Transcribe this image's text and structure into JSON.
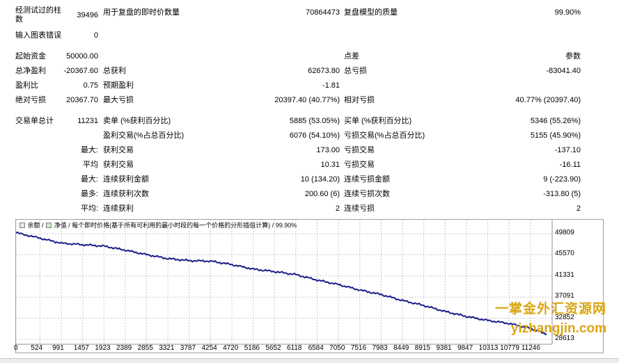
{
  "rows": [
    {
      "label": "经测试过的柱数",
      "value": "39496",
      "mid_label": "用于复盘的即时价数量",
      "mid_value": "70864473",
      "right_label": "复盘模型的质量",
      "right_value": "99.90%"
    },
    {
      "label": "输入图表错误",
      "value": "0"
    },
    {
      "label": "起始资金",
      "value": "50000.00",
      "right_label": "点差",
      "right_value": "参数"
    },
    {
      "label": "总净盈利",
      "value": "-20367.60",
      "mid_label": "总获利",
      "mid_value": "62673.80",
      "right_label": "总亏损",
      "right_value": "-83041.40"
    },
    {
      "label": "盈利比",
      "value": "0.75",
      "mid_label": "预期盈利",
      "mid_value": "-1.81"
    },
    {
      "label": "绝对亏损",
      "value": "20367.70",
      "mid_label": "最大亏损",
      "mid_value": "20397.40 (40.77%)",
      "right_label": "相对亏损",
      "right_value": "40.77% (20397.40)"
    },
    {
      "label": "交易单总计",
      "value": "11231",
      "mid_label": "卖单 (%获利百分比)",
      "mid_value": "5885 (53.05%)",
      "right_label": "买单 (%获利百分比)",
      "right_value": "5346 (55.26%)"
    },
    {
      "mid_label": "盈利交易(%占总百分比)",
      "mid_value": "6076 (54.10%)",
      "right_label": "亏损交易(%占总百分比)",
      "right_value": "5155 (45.90%)"
    },
    {
      "prefix": "最大:",
      "mid_label": "获利交易",
      "mid_value": "173.00",
      "right_label": "亏损交易",
      "right_value": "-137.10"
    },
    {
      "prefix": "平均",
      "mid_label": "获利交易",
      "mid_value": "10.31",
      "right_label": "亏损交易",
      "right_value": "-16.11"
    },
    {
      "prefix": "最大:",
      "mid_label": "连续获利金额",
      "mid_value": "10 (134.20)",
      "right_label": "连续亏损金额",
      "right_value": "9 (-223.90)"
    },
    {
      "prefix": "最多:",
      "mid_label": "连续获利次数",
      "mid_value": "200.60 (6)",
      "right_label": "连续亏损次数",
      "right_value": "-313.80 (5)"
    },
    {
      "prefix": "平均:",
      "mid_label": "连续获利",
      "mid_value": "2",
      "right_label": "连续亏损",
      "right_value": "2"
    }
  ],
  "legend": {
    "balance": "余额",
    "sep1": "/",
    "equity": "净值",
    "sep2": "/",
    "description": "每个即时价格(基于所有可利用的最小时段的每一个价格的分形插值计算)",
    "sep3": "/",
    "quality": "99.90%"
  },
  "chart_data": {
    "type": "line",
    "series": [
      {
        "x": [
          0,
          524,
          991,
          1457,
          1923,
          2389,
          2855,
          3321,
          3787,
          4254,
          4720,
          5186,
          5652,
          6118,
          6584,
          7050,
          7516,
          7983,
          8449,
          8915,
          9381,
          9847,
          10313,
          10779,
          11246,
          11600
        ],
        "values": [
          50000,
          48900,
          47900,
          47600,
          47300,
          46500,
          45600,
          44800,
          44400,
          44300,
          43600,
          42700,
          42200,
          41600,
          40500,
          39600,
          38500,
          37600,
          36400,
          35400,
          34200,
          33200,
          32400,
          31800,
          30800,
          29700
        ]
      }
    ],
    "x_ticks": [
      "0",
      "524",
      "991",
      "1457",
      "1923",
      "2389",
      "2855",
      "3321",
      "3787",
      "4254",
      "4720",
      "5186",
      "5652",
      "6118",
      "6584",
      "7050",
      "7516",
      "7983",
      "8449",
      "8915",
      "9381",
      "9847",
      "10313",
      "10779",
      "11246"
    ],
    "y_ticks": [
      "49809",
      "45570",
      "41331",
      "37091",
      "32852",
      "28613"
    ],
    "ylim": [
      28613,
      49809
    ],
    "xlim": [
      0,
      11720
    ],
    "grid": true,
    "line_color": "#1c1c8c"
  },
  "watermark": {
    "line1": "一掌金外汇资源网",
    "line2": "yizhangjin.com"
  }
}
